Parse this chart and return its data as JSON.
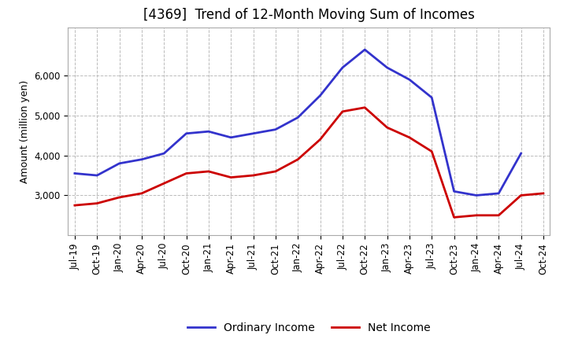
{
  "title": "[4369]  Trend of 12-Month Moving Sum of Incomes",
  "ylabel": "Amount (million yen)",
  "x_labels": [
    "Jul-19",
    "Oct-19",
    "Jan-20",
    "Apr-20",
    "Jul-20",
    "Oct-20",
    "Jan-21",
    "Apr-21",
    "Jul-21",
    "Oct-21",
    "Jan-22",
    "Apr-22",
    "Jul-22",
    "Oct-22",
    "Jan-23",
    "Apr-23",
    "Jul-23",
    "Oct-23",
    "Jan-24",
    "Apr-24",
    "Jul-24",
    "Oct-24"
  ],
  "ordinary_income": [
    3550,
    3500,
    3800,
    3900,
    4050,
    4550,
    4600,
    4450,
    4550,
    4650,
    4950,
    5500,
    6200,
    6650,
    6200,
    5900,
    5450,
    3100,
    3000,
    3050,
    4050,
    null
  ],
  "net_income": [
    2750,
    2800,
    2950,
    3050,
    3300,
    3550,
    3600,
    3450,
    3500,
    3600,
    3900,
    4400,
    5100,
    5200,
    4700,
    4450,
    4100,
    2450,
    2500,
    2500,
    3000,
    3050
  ],
  "ordinary_color": "#3333cc",
  "net_color": "#cc0000",
  "ylim_min": 2000,
  "ylim_max": 7200,
  "yticks": [
    3000,
    4000,
    5000,
    6000
  ],
  "background_color": "#ffffff",
  "grid_color": "#bbbbbb",
  "title_fontsize": 12,
  "ylabel_fontsize": 9,
  "tick_fontsize": 8.5,
  "legend_fontsize": 10,
  "linewidth": 2.0
}
